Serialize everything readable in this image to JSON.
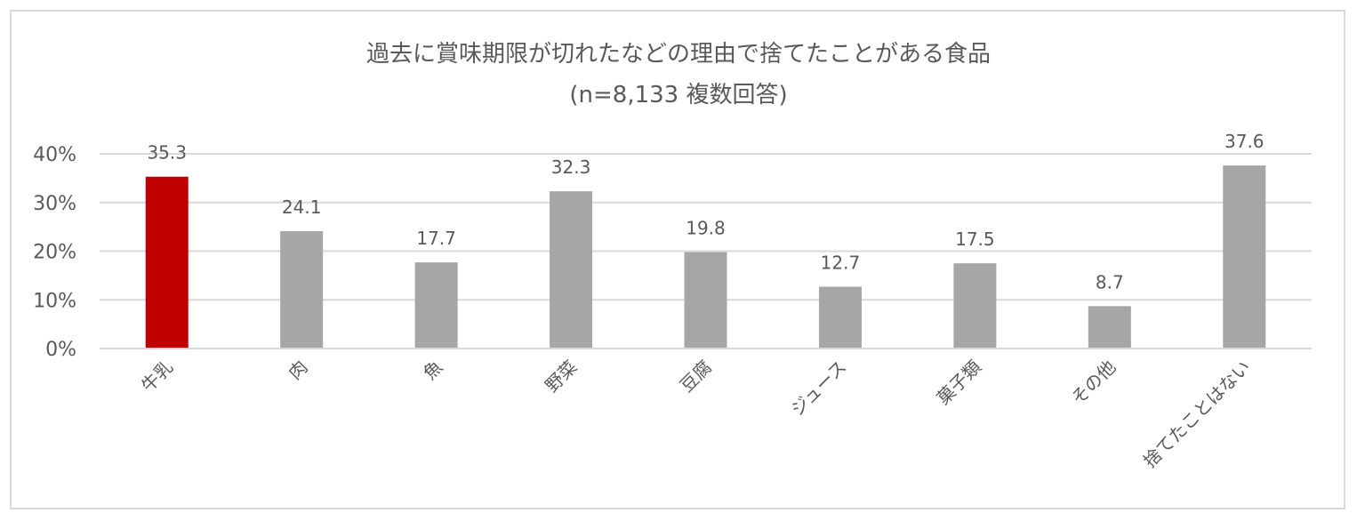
{
  "chart_data": {
    "type": "bar",
    "title": "過去に賞味期限が切れたなどの理由で捨てたことがある食品",
    "subtitle": "(n=8,133 複数回答)",
    "categories": [
      "牛乳",
      "肉",
      "魚",
      "野菜",
      "豆腐",
      "ジュース",
      "菓子類",
      "その他",
      "捨てたことはない"
    ],
    "values": [
      35.3,
      24.1,
      17.7,
      32.3,
      19.8,
      12.7,
      17.5,
      8.7,
      37.6
    ],
    "data_labels": [
      "35.3",
      "24.1",
      "17.7",
      "32.3",
      "19.8",
      "12.7",
      "17.5",
      "8.7",
      "37.6"
    ],
    "yticks": [
      {
        "value": 0,
        "label": "0%"
      },
      {
        "value": 10,
        "label": "10%"
      },
      {
        "value": 20,
        "label": "20%"
      },
      {
        "value": 30,
        "label": "30%"
      },
      {
        "value": 40,
        "label": "40%"
      }
    ],
    "ylim": [
      0,
      40
    ],
    "xlabel": "",
    "ylabel": "",
    "grid": true,
    "colors": {
      "highlight": "#c00000",
      "default": "#a6a6a6",
      "grid": "#d9d9d9",
      "text": "#595959"
    },
    "highlight_index": 0
  }
}
